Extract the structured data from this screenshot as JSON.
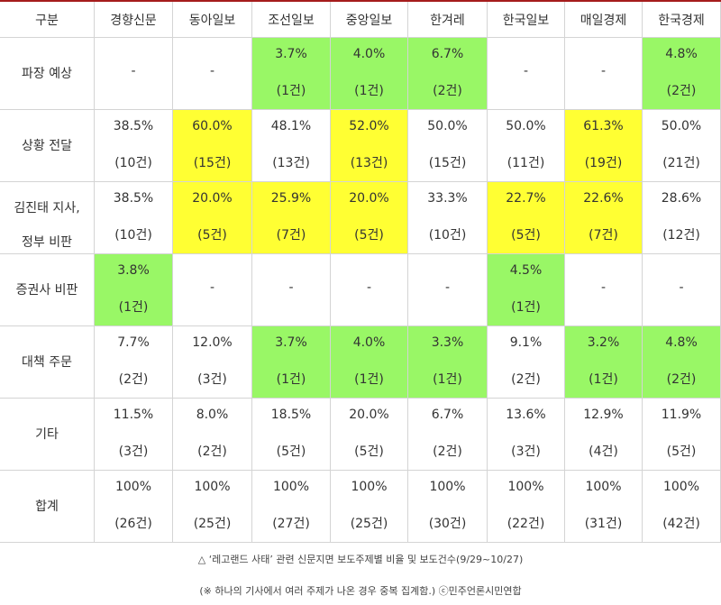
{
  "table": {
    "header": [
      "구분",
      "경향신문",
      "동아일보",
      "조선일보",
      "중앙일보",
      "한겨레",
      "한국일보",
      "매일경제",
      "한국경제"
    ],
    "rows": [
      {
        "label": [
          "파장 예상"
        ],
        "cells": [
          {
            "text": "-"
          },
          {
            "text": "-"
          },
          {
            "pct": "3.7%",
            "count": "(1건)",
            "highlight": "#99f766"
          },
          {
            "pct": "4.0%",
            "count": "(1건)",
            "highlight": "#99f766"
          },
          {
            "pct": "6.7%",
            "count": "(2건)",
            "highlight": "#99f766"
          },
          {
            "text": "-"
          },
          {
            "text": "-"
          },
          {
            "pct": "4.8%",
            "count": "(2건)",
            "highlight": "#99f766"
          }
        ]
      },
      {
        "label": [
          "상황 전달"
        ],
        "cells": [
          {
            "pct": "38.5%",
            "count": "(10건)"
          },
          {
            "pct": "60.0%",
            "count": "(15건)",
            "highlight": "#ffff33"
          },
          {
            "pct": "48.1%",
            "count": "(13건)"
          },
          {
            "pct": "52.0%",
            "count": "(13건)",
            "highlight": "#ffff33"
          },
          {
            "pct": "50.0%",
            "count": "(15건)"
          },
          {
            "pct": "50.0%",
            "count": "(11건)"
          },
          {
            "pct": "61.3%",
            "count": "(19건)",
            "highlight": "#ffff33"
          },
          {
            "pct": "50.0%",
            "count": "(21건)"
          }
        ]
      },
      {
        "label": [
          "김진태 지사,",
          "정부 비판"
        ],
        "cells": [
          {
            "pct": "38.5%",
            "count": "(10건)"
          },
          {
            "pct": "20.0%",
            "count": "(5건)",
            "highlight": "#ffff33"
          },
          {
            "pct": "25.9%",
            "count": "(7건)",
            "highlight": "#ffff33"
          },
          {
            "pct": "20.0%",
            "count": "(5건)",
            "highlight": "#ffff33"
          },
          {
            "pct": "33.3%",
            "count": "(10건)"
          },
          {
            "pct": "22.7%",
            "count": "(5건)",
            "highlight": "#ffff33"
          },
          {
            "pct": "22.6%",
            "count": "(7건)",
            "highlight": "#ffff33"
          },
          {
            "pct": "28.6%",
            "count": "(12건)"
          }
        ]
      },
      {
        "label": [
          "증권사 비판"
        ],
        "cells": [
          {
            "pct": "3.8%",
            "count": "(1건)",
            "highlight": "#99f766"
          },
          {
            "text": "-"
          },
          {
            "text": "-"
          },
          {
            "text": "-"
          },
          {
            "text": "-"
          },
          {
            "pct": "4.5%",
            "count": "(1건)",
            "highlight": "#99f766"
          },
          {
            "text": "-"
          },
          {
            "text": "-"
          }
        ]
      },
      {
        "label": [
          "대책 주문"
        ],
        "cells": [
          {
            "pct": "7.7%",
            "count": "(2건)"
          },
          {
            "pct": "12.0%",
            "count": "(3건)"
          },
          {
            "pct": "3.7%",
            "count": "(1건)",
            "highlight": "#99f766"
          },
          {
            "pct": "4.0%",
            "count": "(1건)",
            "highlight": "#99f766"
          },
          {
            "pct": "3.3%",
            "count": "(1건)",
            "highlight": "#99f766"
          },
          {
            "pct": "9.1%",
            "count": "(2건)"
          },
          {
            "pct": "3.2%",
            "count": "(1건)",
            "highlight": "#99f766"
          },
          {
            "pct": "4.8%",
            "count": "(2건)",
            "highlight": "#99f766"
          }
        ]
      },
      {
        "label": [
          "기타"
        ],
        "cells": [
          {
            "pct": "11.5%",
            "count": "(3건)"
          },
          {
            "pct": "8.0%",
            "count": "(2건)"
          },
          {
            "pct": "18.5%",
            "count": "(5건)"
          },
          {
            "pct": "20.0%",
            "count": "(5건)"
          },
          {
            "pct": "6.7%",
            "count": "(2건)"
          },
          {
            "pct": "13.6%",
            "count": "(3건)"
          },
          {
            "pct": "12.9%",
            "count": "(4건)"
          },
          {
            "pct": "11.9%",
            "count": "(5건)"
          }
        ]
      },
      {
        "label": [
          "합계"
        ],
        "cells": [
          {
            "pct": "100%",
            "count": "(26건)"
          },
          {
            "pct": "100%",
            "count": "(25건)"
          },
          {
            "pct": "100%",
            "count": "(27건)"
          },
          {
            "pct": "100%",
            "count": "(25건)"
          },
          {
            "pct": "100%",
            "count": "(30건)"
          },
          {
            "pct": "100%",
            "count": "(22건)"
          },
          {
            "pct": "100%",
            "count": "(31건)"
          },
          {
            "pct": "100%",
            "count": "(42건)"
          }
        ]
      }
    ]
  },
  "caption": [
    "△ ‘레고랜드 사태’ 관련 신문지면 보도주제별 비율 및 보도건수(9/29~10/27)",
    "(※ 하나의 기사에서 여러 주제가 나온 경우 중복 집계함.) ⓒ민주언론시민연합"
  ]
}
